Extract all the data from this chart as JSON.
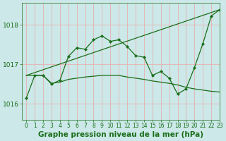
{
  "bg_color": "#cce8e8",
  "grid_color": "#e8b0b0",
  "line_color": "#1a6e1a",
  "title": "Graphe pression niveau de la mer (hPa)",
  "xlim": [
    -0.5,
    23
  ],
  "ylim": [
    1015.6,
    1018.55
  ],
  "yticks": [
    1016,
    1017,
    1018
  ],
  "xticks": [
    0,
    1,
    2,
    3,
    4,
    5,
    6,
    7,
    8,
    9,
    10,
    11,
    12,
    13,
    14,
    15,
    16,
    17,
    18,
    19,
    20,
    21,
    22,
    23
  ],
  "series1_x": [
    0,
    1,
    2,
    3,
    4,
    5,
    6,
    7,
    8,
    9,
    10,
    11,
    12,
    13,
    14,
    15,
    16,
    17,
    18,
    19,
    20,
    21,
    22,
    23
  ],
  "series1_y": [
    1016.15,
    1016.72,
    1016.72,
    1016.5,
    1016.6,
    1017.2,
    1017.42,
    1017.38,
    1017.62,
    1017.72,
    1017.58,
    1017.62,
    1017.45,
    1017.22,
    1017.18,
    1016.72,
    1016.82,
    1016.65,
    1016.25,
    1016.38,
    1016.92,
    1017.52,
    1018.22,
    1018.38
  ],
  "series2_x": [
    0,
    23
  ],
  "series2_y": [
    1016.72,
    1018.38
  ],
  "series3_x": [
    0,
    1,
    2,
    3,
    4,
    5,
    6,
    7,
    8,
    9,
    10,
    11,
    12,
    13,
    14,
    15,
    16,
    17,
    18,
    19,
    20,
    21,
    22,
    23
  ],
  "series3_y": [
    1016.72,
    1016.72,
    1016.72,
    1016.52,
    1016.55,
    1016.62,
    1016.65,
    1016.68,
    1016.7,
    1016.72,
    1016.72,
    1016.72,
    1016.68,
    1016.65,
    1016.62,
    1016.58,
    1016.55,
    1016.52,
    1016.48,
    1016.42,
    1016.38,
    1016.35,
    1016.32,
    1016.3
  ],
  "title_fontsize": 7.5,
  "tick_fontsize": 6.5
}
